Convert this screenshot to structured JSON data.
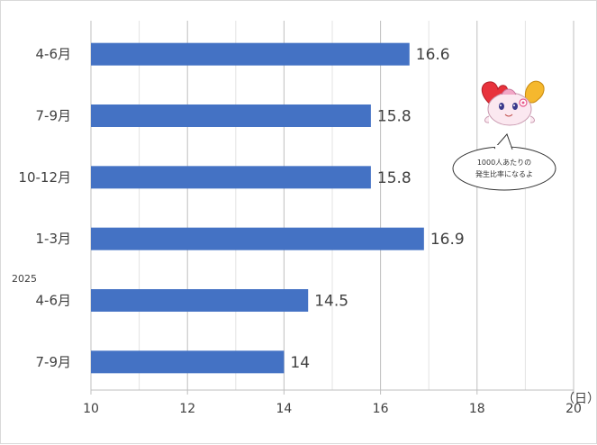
{
  "chart_data": {
    "type": "bar",
    "orientation": "horizontal",
    "categories": [
      "4-6月",
      "7-9月",
      "10-12月",
      "1-3月",
      "4-6月",
      "7-9月"
    ],
    "values": [
      16.6,
      15.8,
      15.8,
      16.9,
      14.5,
      14
    ],
    "year_marker": "2025",
    "unit": "（日）",
    "xlim": [
      10,
      20
    ],
    "xticks": [
      10,
      12,
      14,
      16,
      18,
      20
    ],
    "grid": "vertical",
    "bar_color": "#4472c4"
  },
  "mascot": {
    "bubble_line1": "1000人あたりの",
    "bubble_line2": "発生比率になるよ",
    "icon": "mascot-character"
  }
}
